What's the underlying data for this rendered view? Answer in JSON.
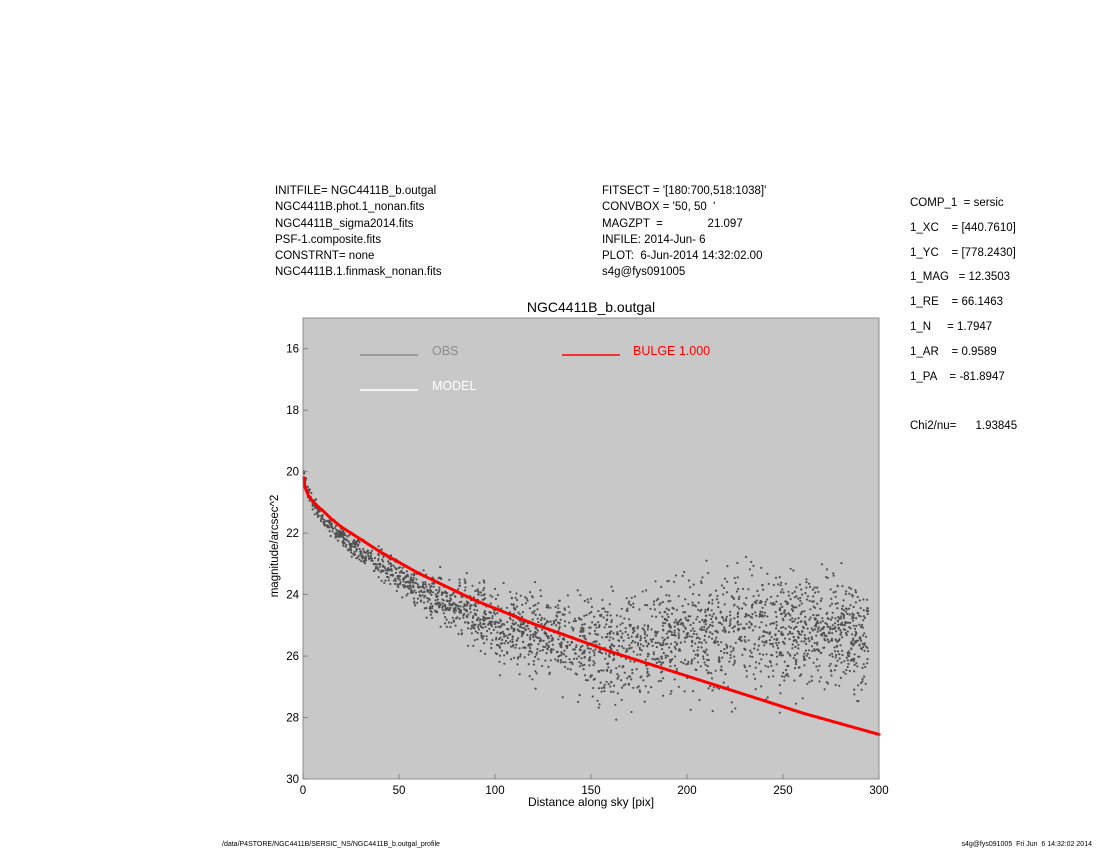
{
  "header": {
    "left": [
      "INITFILE= NGC4411B_b.outgal",
      "NGC4411B.phot.1_nonan.fits",
      "NGC4411B_sigma2014.fits",
      "PSF-1.composite.fits",
      "CONSTRNT= none",
      "NGC4411B.1.finmask_nonan.fits"
    ],
    "mid": [
      "FITSECT = '[180:700,518:1038]'",
      "CONVBOX = '50, 50  '",
      "MAGZPT  =              21.097",
      "INFILE: 2014-Jun- 6",
      "PLOT:  6-Jun-2014 14:32:02.00",
      "s4g@fys091005"
    ],
    "right": [
      "COMP_1  = sersic",
      "1_XC    = [440.7610]",
      "1_YC    = [778.2430]",
      "1_MAG   = 12.3503",
      "1_RE    = 66.1463",
      "1_N     = 1.7947",
      "1_AR    = 0.9589",
      "1_PA    = -81.8947",
      "",
      "Chi2/nu=      1.93845"
    ]
  },
  "footer": {
    "left": "/data/P4STORE/NGC4411B/SERSIC_NS/NGC4411B_b.outgal_profile",
    "right": "s4g@fys091005  Fri Jun  6 14:32:02 2014"
  },
  "colors": {
    "plot_bg": "#c8c8c8",
    "obs": "#505050",
    "legend_obs": "#8c8c8c",
    "model": "#ffffff",
    "bulge": "#ff0000"
  },
  "chart_data": {
    "type": "scatter",
    "title": "NGC4411B_b.outgal",
    "xlabel": "Distance along sky [pix]",
    "ylabel": "magnitude/arcsec^2",
    "xlim": [
      0,
      300
    ],
    "ylim": [
      30.0,
      15.0
    ],
    "y_inverted": true,
    "x_ticks": [
      0,
      50,
      100,
      150,
      200,
      250,
      300
    ],
    "y_ticks": [
      16,
      18,
      20,
      22,
      24,
      26,
      28,
      30
    ],
    "legend": [
      {
        "label": "OBS",
        "color": "#8c8c8c"
      },
      {
        "label": "MODEL",
        "color": "#ffffff"
      },
      {
        "label": "BULGE  1.000",
        "color": "#ff0000"
      }
    ],
    "series": [
      {
        "name": "OBS",
        "kind": "points",
        "points": [
          [
            0.5,
            20.0
          ],
          [
            1,
            20.3
          ],
          [
            2,
            20.6
          ],
          [
            3,
            20.8
          ],
          [
            5,
            21.0
          ],
          [
            8,
            21.3
          ],
          [
            10,
            21.5
          ],
          [
            15,
            21.8
          ],
          [
            20,
            22.1
          ],
          [
            25,
            22.4
          ],
          [
            30,
            22.6
          ],
          [
            35,
            22.8
          ],
          [
            40,
            23.0
          ],
          [
            45,
            23.2
          ],
          [
            50,
            23.4
          ],
          [
            55,
            23.6
          ],
          [
            60,
            23.75
          ],
          [
            65,
            23.9
          ],
          [
            70,
            24.05
          ],
          [
            75,
            24.2
          ],
          [
            80,
            24.35
          ],
          [
            85,
            24.5
          ],
          [
            90,
            24.65
          ],
          [
            95,
            24.8
          ],
          [
            100,
            24.95
          ],
          [
            110,
            25.15
          ],
          [
            120,
            25.3
          ],
          [
            130,
            25.45
          ],
          [
            140,
            25.55
          ],
          [
            150,
            25.6
          ],
          [
            160,
            25.7
          ],
          [
            170,
            25.75
          ],
          [
            180,
            25.6
          ],
          [
            190,
            25.4
          ],
          [
            200,
            25.3
          ],
          [
            210,
            25.2
          ],
          [
            220,
            25.2
          ],
          [
            230,
            25.1
          ],
          [
            240,
            25.2
          ],
          [
            250,
            25.3
          ],
          [
            260,
            25.2
          ],
          [
            270,
            25.3
          ],
          [
            280,
            25.3
          ],
          [
            290,
            25.4
          ]
        ],
        "spread": [
          [
            0,
            0.3
          ],
          [
            10,
            0.25
          ],
          [
            30,
            0.45
          ],
          [
            60,
            0.7
          ],
          [
            100,
            1.2
          ],
          [
            150,
            1.8
          ],
          [
            200,
            2.0
          ],
          [
            250,
            2.1
          ],
          [
            290,
            2.0
          ]
        ]
      },
      {
        "name": "BULGE  1.000",
        "kind": "line",
        "points": [
          [
            0.5,
            20.2
          ],
          [
            1,
            20.5
          ],
          [
            2,
            20.65
          ],
          [
            3,
            20.8
          ],
          [
            4,
            20.88
          ],
          [
            5,
            20.95
          ],
          [
            8,
            21.15
          ],
          [
            10,
            21.25
          ],
          [
            15,
            21.55
          ],
          [
            20,
            21.8
          ],
          [
            25,
            22.0
          ],
          [
            30,
            22.2
          ],
          [
            40,
            22.6
          ],
          [
            50,
            22.95
          ],
          [
            60,
            23.3
          ],
          [
            70,
            23.6
          ],
          [
            80,
            23.9
          ],
          [
            90,
            24.2
          ],
          [
            100,
            24.45
          ],
          [
            120,
            24.95
          ],
          [
            140,
            25.4
          ],
          [
            160,
            25.85
          ],
          [
            180,
            26.25
          ],
          [
            200,
            26.65
          ],
          [
            220,
            27.05
          ],
          [
            240,
            27.45
          ],
          [
            260,
            27.85
          ],
          [
            280,
            28.2
          ],
          [
            300,
            28.55
          ]
        ]
      }
    ]
  }
}
